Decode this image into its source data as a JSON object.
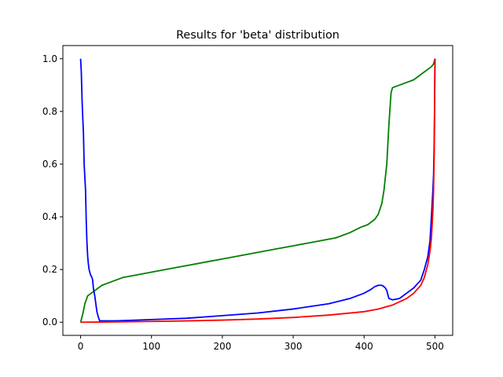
{
  "chart_data": {
    "type": "line",
    "title": "Results for 'beta' distribution",
    "xlabel": "",
    "ylabel": "",
    "xlim": [
      -25,
      525
    ],
    "ylim": [
      -0.05,
      1.05
    ],
    "x_ticks": [
      0,
      100,
      200,
      300,
      400,
      500
    ],
    "y_ticks": [
      0.0,
      0.2,
      0.4,
      0.6,
      0.8,
      1.0
    ],
    "x_tick_labels": [
      "0",
      "100",
      "200",
      "300",
      "400",
      "500"
    ],
    "y_tick_labels": [
      "0.0",
      "0.2",
      "0.4",
      "0.6",
      "0.8",
      "1.0"
    ],
    "grid": false,
    "legend": "none",
    "series": [
      {
        "color": "#008000",
        "x": [
          0,
          3,
          6,
          10,
          20,
          30,
          40,
          60,
          80,
          100,
          120,
          140,
          160,
          180,
          200,
          220,
          240,
          260,
          280,
          300,
          320,
          340,
          360,
          380,
          395,
          405,
          410,
          415,
          420,
          425,
          428,
          432,
          435,
          438,
          440,
          450,
          460,
          470,
          480,
          490,
          495,
          498,
          500
        ],
        "y": [
          0.0,
          0.03,
          0.07,
          0.1,
          0.12,
          0.14,
          0.15,
          0.17,
          0.18,
          0.19,
          0.2,
          0.21,
          0.22,
          0.23,
          0.24,
          0.25,
          0.26,
          0.27,
          0.28,
          0.29,
          0.3,
          0.31,
          0.32,
          0.34,
          0.36,
          0.37,
          0.38,
          0.39,
          0.41,
          0.45,
          0.5,
          0.6,
          0.75,
          0.87,
          0.89,
          0.9,
          0.91,
          0.92,
          0.94,
          0.96,
          0.97,
          0.98,
          1.0
        ]
      },
      {
        "color": "#0000ff",
        "x": [
          0,
          1,
          2,
          3,
          4,
          5,
          6,
          7,
          8,
          9,
          10,
          11,
          12,
          14,
          16,
          17,
          18,
          20,
          22,
          23,
          25,
          27,
          50,
          100,
          150,
          200,
          250,
          300,
          350,
          380,
          400,
          410,
          415,
          420,
          425,
          428,
          430,
          432,
          435,
          440,
          450,
          460,
          470,
          480,
          485,
          490,
          493,
          495,
          497,
          498,
          499,
          500
        ],
        "y": [
          1.0,
          0.95,
          0.85,
          0.78,
          0.72,
          0.6,
          0.55,
          0.5,
          0.38,
          0.3,
          0.25,
          0.22,
          0.2,
          0.18,
          0.17,
          0.16,
          0.13,
          0.1,
          0.06,
          0.04,
          0.02,
          0.005,
          0.005,
          0.01,
          0.015,
          0.025,
          0.035,
          0.05,
          0.07,
          0.09,
          0.11,
          0.125,
          0.135,
          0.14,
          0.14,
          0.135,
          0.13,
          0.12,
          0.09,
          0.085,
          0.09,
          0.11,
          0.13,
          0.16,
          0.2,
          0.25,
          0.31,
          0.4,
          0.5,
          0.56,
          0.7,
          1.0
        ]
      },
      {
        "color": "#ff0000",
        "x": [
          0,
          50,
          100,
          150,
          200,
          250,
          300,
          350,
          400,
          420,
          440,
          460,
          470,
          480,
          485,
          490,
          493,
          495,
          497,
          498,
          499,
          500
        ],
        "y": [
          0.0,
          0.001,
          0.003,
          0.005,
          0.008,
          0.012,
          0.018,
          0.027,
          0.04,
          0.05,
          0.065,
          0.09,
          0.11,
          0.14,
          0.17,
          0.22,
          0.27,
          0.32,
          0.42,
          0.5,
          0.65,
          1.0
        ]
      }
    ]
  }
}
